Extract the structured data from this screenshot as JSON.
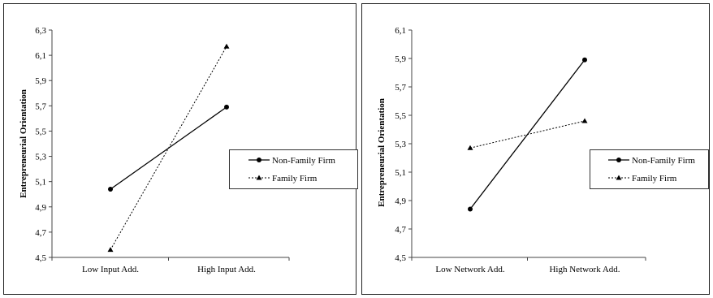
{
  "chart_data": [
    {
      "type": "line",
      "categories": [
        "Low Input Add.",
        "High Input Add."
      ],
      "ylabel": "Entrepreneurial Orientation",
      "ylim": [
        4.5,
        6.3
      ],
      "yticks": [
        "4,5",
        "4,7",
        "4,9",
        "5,1",
        "5,3",
        "5,5",
        "5,7",
        "5,9",
        "6,1",
        "6,3"
      ],
      "grid": false,
      "legend_position": "right",
      "series": [
        {
          "name": "Non-Family Firm",
          "values": [
            5.04,
            5.69
          ],
          "line_style": "solid",
          "marker": "circle"
        },
        {
          "name": "Family Firm",
          "values": [
            4.56,
            6.17
          ],
          "line_style": "dashed",
          "marker": "triangle"
        }
      ]
    },
    {
      "type": "line",
      "categories": [
        "Low Network Add.",
        "High Network Add."
      ],
      "ylabel": "Entrepreneurial Orientation",
      "ylim": [
        4.5,
        6.1
      ],
      "yticks": [
        "4,5",
        "4,7",
        "4,9",
        "5,1",
        "5,3",
        "5,5",
        "5,7",
        "5,9",
        "6,1"
      ],
      "grid": false,
      "legend_position": "right",
      "series": [
        {
          "name": "Non-Family Firm",
          "values": [
            4.84,
            5.89
          ],
          "line_style": "solid",
          "marker": "circle"
        },
        {
          "name": "Family Firm",
          "values": [
            5.27,
            5.46
          ],
          "line_style": "dashed",
          "marker": "triangle"
        }
      ]
    }
  ]
}
